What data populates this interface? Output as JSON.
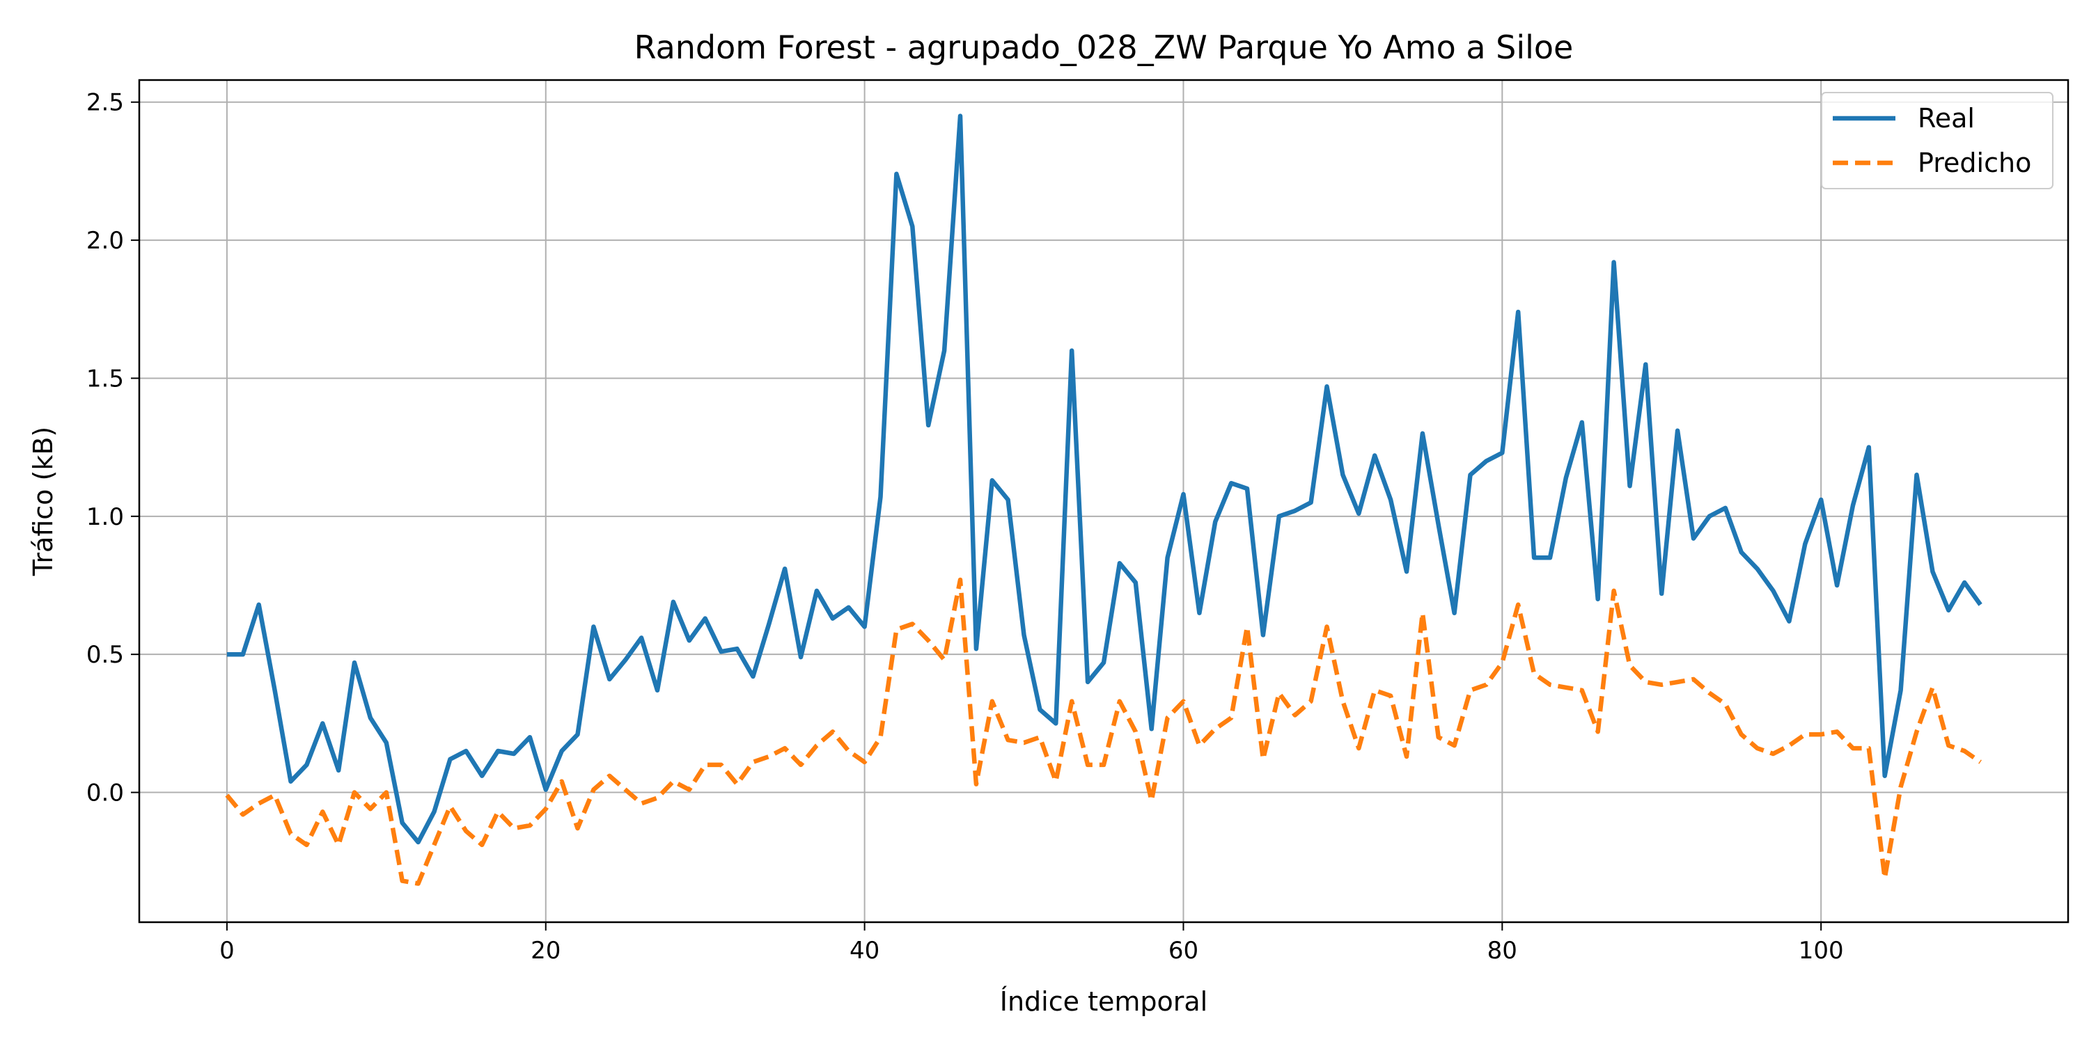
{
  "chart_data": {
    "type": "line",
    "title": "Random Forest - agrupado_028_ZW Parque Yo Amo a Siloe",
    "xlabel": "Índice temporal",
    "ylabel": "Tráfico (kB)",
    "xlim": [
      -5.5,
      115.5
    ],
    "ylim": [
      -0.47,
      2.58
    ],
    "xticks": [
      0,
      20,
      40,
      60,
      80,
      100
    ],
    "xtick_labels": [
      "0",
      "20",
      "40",
      "60",
      "80",
      "100"
    ],
    "yticks": [
      0.0,
      0.5,
      1.0,
      1.5,
      2.0,
      2.5
    ],
    "ytick_labels": [
      "0.0",
      "0.5",
      "1.0",
      "1.5",
      "2.0",
      "2.5"
    ],
    "grid": true,
    "legend_position": "top-right",
    "x": [
      0,
      1,
      2,
      3,
      4,
      5,
      6,
      7,
      8,
      9,
      10,
      11,
      12,
      13,
      14,
      15,
      16,
      17,
      18,
      19,
      20,
      21,
      22,
      23,
      24,
      25,
      26,
      27,
      28,
      29,
      30,
      31,
      32,
      33,
      34,
      35,
      36,
      37,
      38,
      39,
      40,
      41,
      42,
      43,
      44,
      45,
      46,
      47,
      48,
      49,
      50,
      51,
      52,
      53,
      54,
      55,
      56,
      57,
      58,
      59,
      60,
      61,
      62,
      63,
      64,
      65,
      66,
      67,
      68,
      69,
      70,
      71,
      72,
      73,
      74,
      75,
      76,
      77,
      78,
      79,
      80,
      81,
      82,
      83,
      84,
      85,
      86,
      87,
      88,
      89,
      90,
      91,
      92,
      93,
      94,
      95,
      96,
      97,
      98,
      99,
      100,
      101,
      102,
      103,
      104,
      105,
      106,
      107,
      108,
      109,
      110
    ],
    "series": [
      {
        "name": "Real",
        "color": "#1f77b4",
        "style": "solid",
        "values": [
          0.5,
          0.5,
          0.68,
          0.37,
          0.04,
          0.1,
          0.25,
          0.08,
          0.47,
          0.27,
          0.18,
          -0.11,
          -0.18,
          -0.07,
          0.12,
          0.15,
          0.06,
          0.15,
          0.14,
          0.2,
          0.01,
          0.15,
          0.21,
          0.6,
          0.41,
          0.48,
          0.56,
          0.37,
          0.69,
          0.55,
          0.63,
          0.51,
          0.52,
          0.42,
          0.61,
          0.81,
          0.49,
          0.73,
          0.63,
          0.67,
          0.6,
          1.07,
          2.24,
          2.05,
          1.33,
          1.6,
          2.45,
          0.52,
          1.13,
          1.06,
          0.57,
          0.3,
          0.25,
          1.6,
          0.4,
          0.47,
          0.83,
          0.76,
          0.23,
          0.85,
          1.08,
          0.65,
          0.98,
          1.12,
          1.1,
          0.57,
          1.0,
          1.02,
          1.05,
          1.47,
          1.15,
          1.01,
          1.22,
          1.06,
          0.8,
          1.3,
          0.97,
          0.65,
          1.15,
          1.2,
          1.23,
          1.74,
          0.85,
          0.85,
          1.14,
          1.34,
          0.7,
          1.92,
          1.11,
          1.55,
          0.72,
          1.31,
          0.92,
          1.0,
          1.03,
          0.87,
          0.81,
          0.73,
          0.62,
          0.9,
          1.06,
          0.75,
          1.04,
          1.25,
          0.06,
          0.37,
          1.15,
          0.8,
          0.66,
          0.76,
          0.68
        ]
      },
      {
        "name": "Predicho",
        "color": "#ff7f0e",
        "style": "dashed",
        "values": [
          -0.01,
          -0.08,
          -0.04,
          -0.01,
          -0.15,
          -0.19,
          -0.07,
          -0.19,
          0.0,
          -0.06,
          0.0,
          -0.32,
          -0.33,
          -0.19,
          -0.05,
          -0.14,
          -0.19,
          -0.07,
          -0.13,
          -0.12,
          -0.06,
          0.04,
          -0.13,
          0.01,
          0.06,
          0.01,
          -0.04,
          -0.02,
          0.04,
          0.01,
          0.1,
          0.1,
          0.03,
          0.11,
          0.13,
          0.16,
          0.1,
          0.17,
          0.22,
          0.15,
          0.11,
          0.2,
          0.59,
          0.61,
          0.55,
          0.48,
          0.77,
          0.03,
          0.33,
          0.19,
          0.18,
          0.2,
          0.04,
          0.33,
          0.1,
          0.1,
          0.33,
          0.22,
          -0.03,
          0.27,
          0.33,
          0.17,
          0.23,
          0.27,
          0.6,
          0.12,
          0.36,
          0.28,
          0.33,
          0.6,
          0.33,
          0.16,
          0.37,
          0.35,
          0.13,
          0.65,
          0.2,
          0.17,
          0.37,
          0.39,
          0.47,
          0.68,
          0.43,
          0.39,
          0.38,
          0.37,
          0.22,
          0.73,
          0.46,
          0.4,
          0.39,
          0.4,
          0.41,
          0.36,
          0.32,
          0.21,
          0.16,
          0.14,
          0.17,
          0.21,
          0.21,
          0.22,
          0.16,
          0.16,
          -0.31,
          0.02,
          0.22,
          0.38,
          0.17,
          0.15,
          0.11
        ]
      }
    ]
  }
}
